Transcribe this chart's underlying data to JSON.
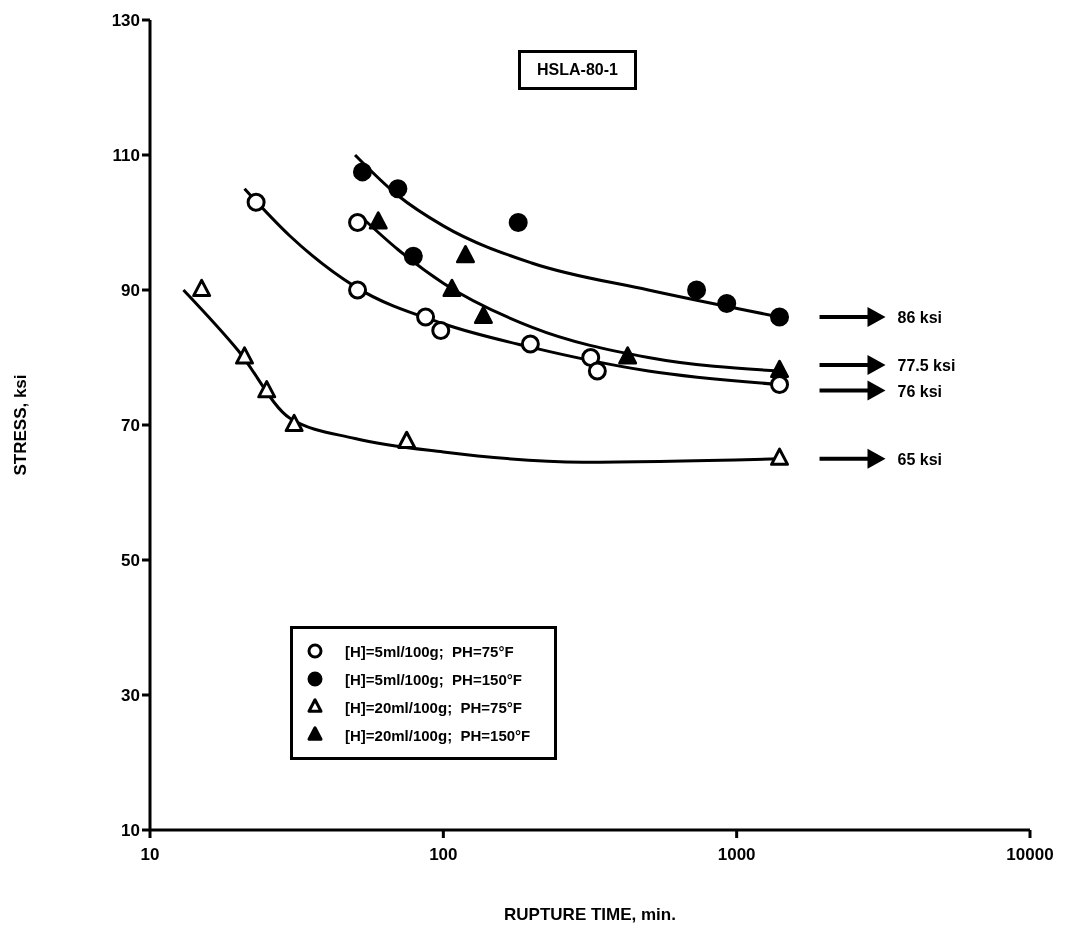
{
  "chart_data": {
    "type": "scatter",
    "title": "HSLA-80-1",
    "xlabel": "RUPTURE TIME, min.",
    "ylabel": "STRESS, ksi",
    "log": "x",
    "xlim": [
      10,
      10000
    ],
    "xticks": [
      10,
      100,
      1000,
      10000
    ],
    "ylim": [
      10,
      130
    ],
    "yticks": [
      10,
      30,
      50,
      70,
      90,
      110,
      130
    ],
    "grid": false,
    "legend": "bottom",
    "series": [
      {
        "name": "[H]=5ml/100g;  PH=75°F",
        "marker": "circle",
        "color": "#ffffff",
        "x": [
          23,
          51,
          51,
          87,
          98,
          198,
          318,
          335,
          1400
        ],
        "values": [
          103,
          100,
          90,
          86,
          84,
          82,
          80,
          78,
          76
        ]
      },
      {
        "name": "[H]=5ml/100g;  PH=150°F",
        "marker": "circle",
        "color": "#000000",
        "x": [
          53,
          70,
          79,
          180,
          730,
          925,
          1400
        ],
        "values": [
          107.5,
          105,
          95,
          100,
          90,
          88,
          86
        ]
      },
      {
        "name": "[H]=20ml/100g;  PH=75°F",
        "marker": "triangle",
        "color": "#ffffff",
        "x": [
          15,
          21,
          25,
          31,
          75,
          1400
        ],
        "values": [
          90,
          80,
          75,
          70,
          67.5,
          65
        ]
      },
      {
        "name": "[H]=20ml/100g;  PH=150°F",
        "marker": "triangle",
        "color": "#000000",
        "x": [
          60,
          107,
          119,
          137,
          425,
          1400
        ],
        "values": [
          100,
          90,
          95,
          86,
          80,
          78
        ]
      },
      {
        "type": "line",
        "color": "#000000",
        "x": [
          21,
          30,
          50,
          100,
          200,
          500,
          1400
        ],
        "values": [
          105,
          98,
          90.5,
          85,
          81.5,
          78,
          76
        ]
      },
      {
        "type": "line",
        "color": "#000000",
        "x": [
          50,
          70,
          100,
          200,
          500,
          1400
        ],
        "values": [
          110,
          104,
          99.5,
          94,
          90,
          86
        ]
      },
      {
        "type": "line",
        "color": "#000000",
        "x": [
          13,
          20,
          30,
          50,
          100,
          300,
          1400
        ],
        "values": [
          90,
          81,
          71,
          68,
          66,
          64.5,
          65
        ]
      },
      {
        "type": "line",
        "color": "#000000",
        "x": [
          52,
          70,
          100,
          200,
          500,
          1400
        ],
        "values": [
          101,
          96,
          91,
          84.5,
          80,
          78
        ]
      }
    ],
    "annotations": [
      "86 ksi",
      "77.5 ksi",
      "76 ksi",
      "65 ksi"
    ]
  }
}
